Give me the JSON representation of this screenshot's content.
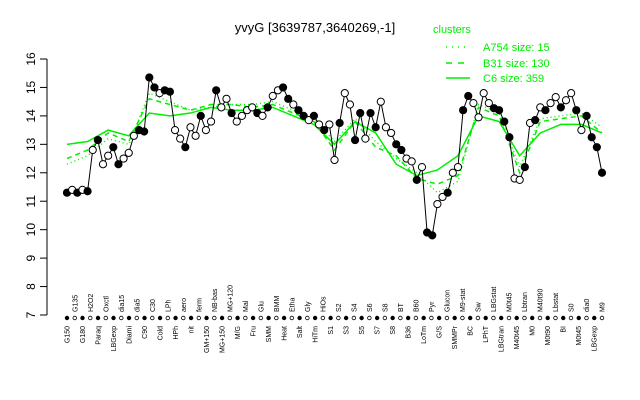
{
  "chart_data": {
    "type": "line",
    "title": "yvyG [3639787,3640269,-1]",
    "xlabel": "",
    "ylabel": "",
    "ylim": [
      7,
      16
    ],
    "yticks": [
      7,
      8,
      9,
      10,
      11,
      12,
      13,
      14,
      15,
      16
    ],
    "grid": false,
    "legend": {
      "title": "clusters",
      "placement": "top-right",
      "entries": [
        {
          "name": "A754 size: 15",
          "style": "dotted"
        },
        {
          "name": "B31 size: 130",
          "style": "dashed"
        },
        {
          "name": "C6 size: 359",
          "style": "solid"
        }
      ],
      "color": "#00ee00"
    },
    "x_labels": [
      "G150",
      "G135",
      "G180",
      "H2O2",
      "Paraq",
      "Oxctl",
      "LBGexp",
      "dia15",
      "Diami",
      "dia5",
      "C90",
      "C30",
      "Cold",
      "LPh",
      "HPh",
      "aero",
      "nit",
      "ferm",
      "GM+150",
      "NB-bas",
      "MG+150",
      "MG+120",
      "M/G",
      "Mal",
      "Fru",
      "Glu",
      "SMM",
      "BMM",
      "Heat",
      "Etha",
      "Salt",
      "Gly",
      "HiTm",
      "HiOs",
      "S1",
      "S2",
      "S3",
      "S4",
      "S5",
      "S6",
      "S7",
      "S8",
      "S8",
      "BT",
      "B36",
      "B60",
      "LoTm",
      "Pyr",
      "G/S",
      "Glucon",
      "SMMPr",
      "M9-stat",
      "BC",
      "Sw",
      "LPhT",
      "LBGstat",
      "LBGtran",
      "M0t45",
      "M40t45",
      "Lbtran",
      "M0",
      "M40t90",
      "M0t90",
      "Lbstat",
      "BI",
      "S0",
      "M0t45",
      "dia0",
      "LBGexp",
      "M9"
    ],
    "series": [
      {
        "kind": "probes",
        "color": "#000000",
        "values": [
          11.3,
          11.4,
          11.3,
          11.4,
          11.35,
          12.8,
          13.15,
          12.3,
          12.6,
          12.9,
          12.3,
          12.5,
          12.7,
          13.3,
          13.5,
          13.45,
          15.35,
          15.0,
          14.8,
          14.9,
          14.85,
          13.5,
          13.2,
          12.9,
          13.6,
          13.3,
          14.0,
          13.5,
          13.8,
          14.9,
          14.3,
          14.6,
          14.1,
          13.8,
          14.0,
          14.2,
          14.3,
          14.1,
          14.0,
          14.3,
          14.7,
          14.9,
          15.0,
          14.6,
          14.4,
          14.2,
          14.0,
          13.85,
          14.0,
          13.7,
          13.5,
          13.7,
          12.45,
          13.75,
          14.8,
          14.4,
          13.15,
          14.1,
          13.2,
          14.1,
          13.6,
          14.5,
          13.6,
          13.4,
          13.0,
          12.8,
          12.5,
          12.4,
          11.75,
          12.2,
          9.9,
          9.8,
          10.9,
          11.15,
          11.3,
          12.0,
          12.2,
          14.2,
          14.7,
          14.45,
          13.95,
          14.8,
          14.45,
          14.27,
          14.2,
          13.8,
          13.25,
          11.8,
          11.75,
          12.2,
          13.75,
          13.85,
          14.3,
          14.2,
          14.45,
          14.66,
          14.3,
          14.55,
          14.8,
          14.2,
          13.5,
          14.0,
          13.25,
          12.9,
          12.0
        ],
        "filled": [
          1,
          0,
          1,
          0,
          1,
          0,
          1,
          0,
          0,
          1,
          1,
          0,
          0,
          0,
          1,
          1,
          1,
          1,
          0,
          1,
          1,
          0,
          0,
          1,
          0,
          0,
          1,
          0,
          0,
          1,
          0,
          0,
          1,
          0,
          0,
          0,
          0,
          1,
          0,
          1,
          0,
          0,
          1,
          1,
          0,
          1,
          1,
          0,
          1,
          0,
          1,
          0,
          0,
          1,
          0,
          0,
          1,
          1,
          0,
          1,
          1,
          0,
          0,
          0,
          1,
          1,
          0,
          0,
          1,
          0,
          1,
          1,
          0,
          0,
          1,
          0,
          0,
          1,
          1,
          0,
          0,
          0,
          0,
          1,
          1,
          1,
          1,
          0,
          0,
          1,
          0,
          1,
          0,
          1,
          0,
          0,
          1,
          0,
          0,
          1,
          0,
          1,
          1,
          1,
          1
        ]
      },
      {
        "name": "C6 size: 359",
        "style": "solid",
        "color": "#00ee00",
        "values": [
          13.0,
          13.1,
          13.5,
          13.3,
          14.1,
          14.0,
          14.1,
          14.3,
          14.2,
          14.2,
          14.3,
          14.0,
          13.7,
          13.0,
          13.8,
          13.4,
          12.3,
          11.9,
          12.1,
          12.6,
          14.0,
          13.8,
          12.6,
          13.4,
          13.7,
          13.7,
          13.4
        ]
      },
      {
        "name": "B31 size: 130",
        "style": "dashed",
        "color": "#00ee00",
        "values": [
          12.5,
          12.8,
          13.4,
          13.1,
          14.6,
          14.4,
          14.2,
          14.4,
          14.4,
          14.3,
          14.4,
          14.1,
          13.8,
          12.8,
          13.8,
          12.9,
          12.6,
          11.8,
          11.6,
          11.9,
          14.3,
          14.0,
          12.0,
          13.8,
          13.9,
          14.0,
          13.4
        ]
      },
      {
        "name": "A754 size: 15",
        "style": "dotted",
        "color": "#00ee00",
        "values": [
          12.3,
          12.6,
          13.2,
          13.0,
          14.8,
          14.5,
          14.2,
          14.3,
          14.4,
          14.4,
          14.5,
          14.2,
          13.9,
          13.1,
          13.9,
          13.1,
          12.5,
          12.0,
          11.3,
          11.7,
          14.4,
          14.1,
          12.2,
          13.9,
          14.0,
          14.1,
          13.6
        ]
      }
    ]
  }
}
